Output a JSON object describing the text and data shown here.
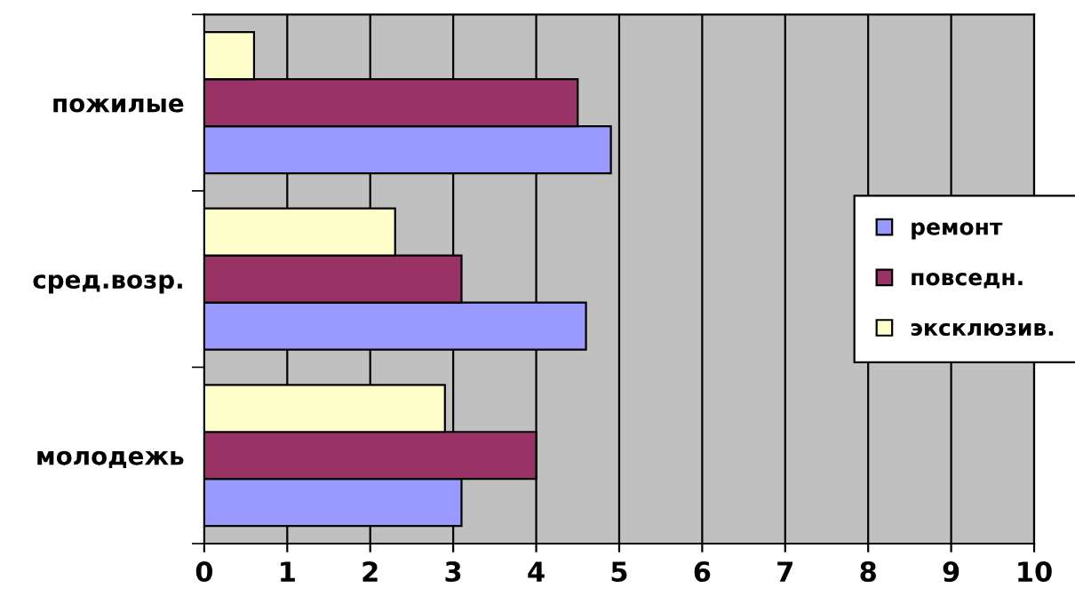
{
  "chart_data": {
    "type": "bar",
    "orientation": "horizontal",
    "categories": [
      "пожилые",
      "сред.возр.",
      "молодежь"
    ],
    "series": [
      {
        "name": "ремонт",
        "color": "#9999ff",
        "values": [
          4.9,
          4.6,
          3.1
        ]
      },
      {
        "name": "повседн.",
        "color": "#993366",
        "values": [
          4.5,
          3.1,
          4.0
        ]
      },
      {
        "name": "эксклюзив.",
        "color": "#ffffcc",
        "values": [
          0.6,
          2.3,
          2.9
        ]
      }
    ],
    "xlim": [
      0,
      10
    ],
    "xticks": [
      0,
      1,
      2,
      3,
      4,
      5,
      6,
      7,
      8,
      9,
      10
    ],
    "grid": "x",
    "legend": "right"
  }
}
